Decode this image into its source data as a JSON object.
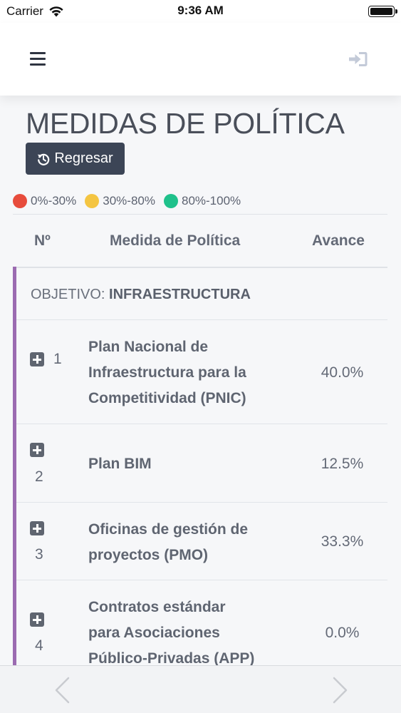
{
  "status": {
    "carrier": "Carrier",
    "time": "9:36 AM"
  },
  "page": {
    "title": "MEDIDAS DE POLÍTICA",
    "back_label": "Regresar"
  },
  "legend": [
    {
      "label": "0%-30%",
      "color": "#e74c3c"
    },
    {
      "label": "30%-80%",
      "color": "#f4c542"
    },
    {
      "label": "80%-100%",
      "color": "#1fc18b"
    }
  ],
  "table": {
    "headers": {
      "num": "Nº",
      "measure": "Medida de Política",
      "progress": "Avance"
    },
    "objective": {
      "prefix": "OBJETIVO:",
      "name": "INFRAESTRUCTURA"
    },
    "rows": [
      {
        "num": "1",
        "lines": [
          "Plan Nacional de",
          "Infraestructura para la",
          "Competitividad (PNIC)"
        ],
        "progress": "40.0%"
      },
      {
        "num": "2",
        "lines": [
          "Plan BIM"
        ],
        "progress": "12.5%"
      },
      {
        "num": "3",
        "lines": [
          "Oficinas de gestión de",
          "proyectos (PMO)"
        ],
        "progress": "33.3%"
      },
      {
        "num": "4",
        "lines": [
          "Contratos estándar",
          "para Asociaciones",
          "Público-Privadas (APP)"
        ],
        "progress": "0.0%"
      }
    ]
  },
  "icons": {
    "menu": "hamburger-icon",
    "login": "sign-in-icon",
    "back": "history-icon",
    "expand": "plus-square-icon",
    "prev": "chevron-left-icon",
    "next": "chevron-right-icon"
  },
  "colors": {
    "accent": "#9b6bb1",
    "button": "#3c4556"
  }
}
